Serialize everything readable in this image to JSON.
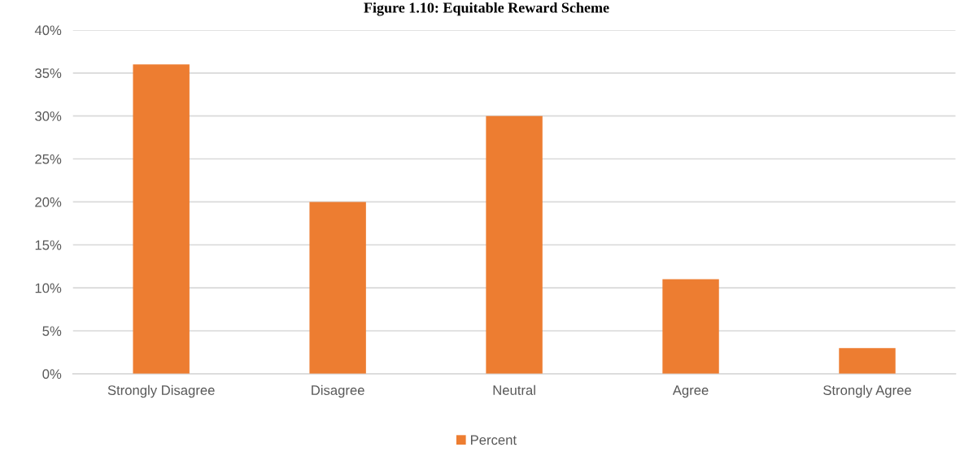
{
  "chart_data": {
    "type": "bar",
    "title": "Figure 1.10: Equitable Reward Scheme",
    "categories": [
      "Strongly Disagree",
      "Disagree",
      "Neutral",
      "Agree",
      "Strongly Agree"
    ],
    "series": [
      {
        "name": "Percent",
        "color": "#ed7d31",
        "values": [
          36,
          20,
          30,
          11,
          3
        ]
      }
    ],
    "ylim": [
      0,
      40
    ],
    "yticks": [
      {
        "value": 0,
        "label": "0%"
      },
      {
        "value": 5,
        "label": "5%"
      },
      {
        "value": 10,
        "label": "10%"
      },
      {
        "value": 15,
        "label": "15%"
      },
      {
        "value": 20,
        "label": "20%"
      },
      {
        "value": 25,
        "label": "25%"
      },
      {
        "value": 30,
        "label": "30%"
      },
      {
        "value": 35,
        "label": "35%"
      },
      {
        "value": 40,
        "label": "40%"
      }
    ],
    "grid": "y",
    "legend": "bottom"
  }
}
